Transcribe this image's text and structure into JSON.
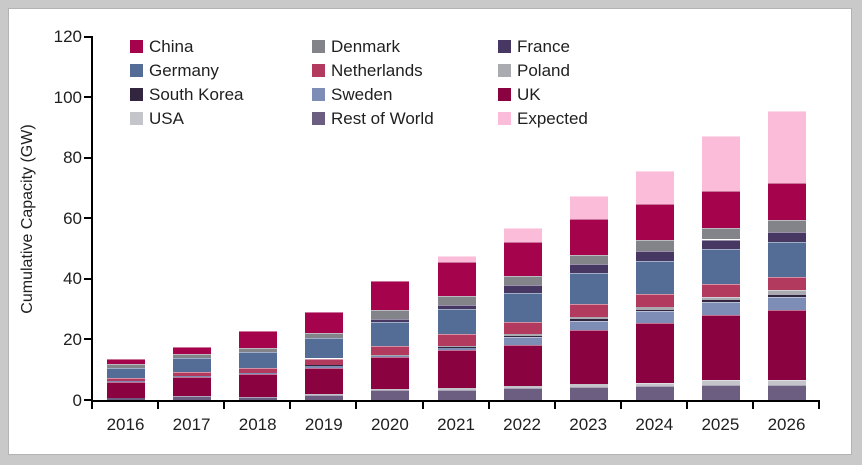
{
  "frame": {
    "outer_background": "#c9c9c9",
    "panel_background": "#ffffff"
  },
  "chart_data": {
    "type": "bar",
    "stacked": true,
    "title": "",
    "xlabel": "",
    "ylabel": "Cumulative Capacity (GW)",
    "ylim": [
      0,
      120
    ],
    "y_ticks": [
      0,
      20,
      40,
      60,
      80,
      100,
      120
    ],
    "grid": false,
    "legend_position": "top-left-inside, 3 columns x 4 rows",
    "legend_order": [
      "China",
      "Denmark",
      "France",
      "Germany",
      "Netherlands",
      "Poland",
      "South Korea",
      "Sweden",
      "UK",
      "USA",
      "Rest of World",
      "Expected"
    ],
    "categories": [
      "2016",
      "2017",
      "2018",
      "2019",
      "2020",
      "2021",
      "2022",
      "2023",
      "2024",
      "2025",
      "2026"
    ],
    "stacking_note": "series listed bottom-to-top as drawn",
    "series": [
      {
        "name": "Rest of World",
        "color": "#6B5E80",
        "values": [
          0.7,
          1.2,
          1.1,
          1.8,
          3.2,
          3.4,
          4.0,
          4.4,
          4.6,
          5.0,
          5.1
        ]
      },
      {
        "name": "USA",
        "color": "#C3C5CB",
        "values": [
          0,
          0,
          0,
          0.3,
          0.5,
          0.5,
          0.7,
          0.8,
          1.1,
          1.5,
          1.6
        ]
      },
      {
        "name": "UK",
        "color": "#8A0240",
        "values": [
          5.3,
          6.5,
          7.6,
          8.6,
          10.4,
          12.5,
          13.5,
          18.0,
          19.8,
          21.5,
          22.9
        ]
      },
      {
        "name": "Sweden",
        "color": "#7E8DB6",
        "values": [
          0.2,
          0.2,
          0.3,
          0.6,
          0.6,
          1.0,
          2.6,
          3.0,
          3.8,
          4.4,
          4.4
        ]
      },
      {
        "name": "South Korea",
        "color": "#32253F",
        "values": [
          0,
          0,
          0,
          0.1,
          0.1,
          0.2,
          0.4,
          0.5,
          0.5,
          0.6,
          0.8
        ]
      },
      {
        "name": "Poland",
        "color": "#A9ABB0",
        "values": [
          0,
          0,
          0,
          0,
          0.1,
          0.3,
          0.7,
          0.8,
          0.9,
          1.0,
          1.4
        ]
      },
      {
        "name": "Netherlands",
        "color": "#B23A5F",
        "values": [
          1.0,
          1.2,
          1.5,
          2.3,
          2.8,
          3.8,
          3.9,
          4.1,
          4.3,
          4.4,
          4.4
        ]
      },
      {
        "name": "Germany",
        "color": "#546D97",
        "values": [
          3.4,
          4.8,
          5.2,
          6.8,
          7.9,
          8.3,
          9.6,
          10.2,
          10.8,
          11.3,
          11.6
        ]
      },
      {
        "name": "France",
        "color": "#463763",
        "values": [
          0,
          0,
          0,
          0,
          1.0,
          1.5,
          2.5,
          3.0,
          3.3,
          3.3,
          3.3
        ]
      },
      {
        "name": "Denmark",
        "color": "#828489",
        "values": [
          1.3,
          1.2,
          1.5,
          1.7,
          3.0,
          3.0,
          3.0,
          3.2,
          3.6,
          3.9,
          3.9
        ]
      },
      {
        "name": "China",
        "color": "#A5034C",
        "values": [
          1.5,
          2.5,
          5.6,
          7.0,
          9.7,
          11.0,
          11.3,
          11.7,
          11.9,
          12.0,
          12.1
        ]
      },
      {
        "name": "Expected",
        "color": "#FBBCD9",
        "values": [
          0,
          0,
          0,
          0,
          0,
          2.0,
          4.5,
          7.8,
          11.0,
          18.2,
          23.9
        ]
      }
    ]
  }
}
